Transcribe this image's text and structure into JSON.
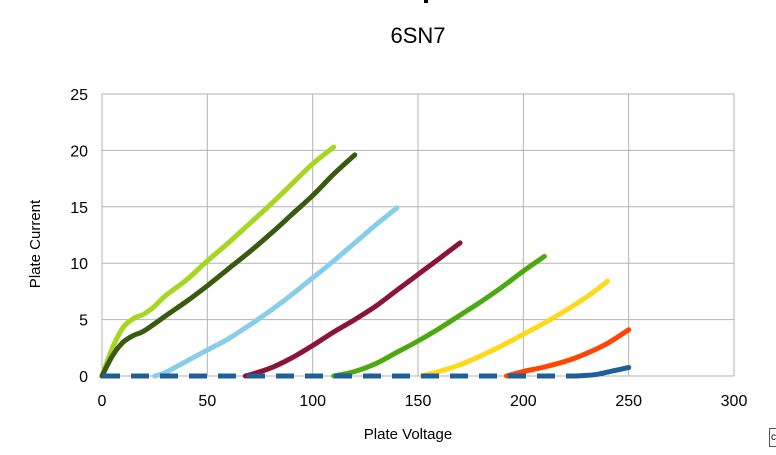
{
  "chart_data": {
    "type": "line",
    "title": "6SN7",
    "xlabel": "Plate Voltage",
    "ylabel": "Plate Current",
    "xlim": [
      0,
      300
    ],
    "ylim": [
      0,
      25
    ],
    "x_ticks": [
      0,
      50,
      100,
      150,
      200,
      250,
      300
    ],
    "y_ticks": [
      0,
      5,
      10,
      15,
      20,
      25
    ],
    "grid": true,
    "legend": "none",
    "series": [
      {
        "color": "#a6d620",
        "points": [
          [
            0,
            0
          ],
          [
            5,
            2.5
          ],
          [
            10,
            4.3
          ],
          [
            15,
            5.1
          ],
          [
            20,
            5.5
          ],
          [
            25,
            6.2
          ],
          [
            30,
            7.1
          ],
          [
            40,
            8.5
          ],
          [
            50,
            10.2
          ],
          [
            60,
            11.8
          ],
          [
            70,
            13.5
          ],
          [
            80,
            15.2
          ],
          [
            90,
            17.0
          ],
          [
            100,
            18.8
          ],
          [
            110,
            20.3
          ]
        ]
      },
      {
        "color": "#3a5a10",
        "points": [
          [
            0,
            0
          ],
          [
            5,
            1.8
          ],
          [
            10,
            3.0
          ],
          [
            15,
            3.6
          ],
          [
            20,
            4.0
          ],
          [
            30,
            5.3
          ],
          [
            40,
            6.6
          ],
          [
            50,
            8.0
          ],
          [
            60,
            9.5
          ],
          [
            70,
            11.0
          ],
          [
            80,
            12.6
          ],
          [
            90,
            14.3
          ],
          [
            100,
            16.0
          ],
          [
            110,
            17.9
          ],
          [
            120,
            19.6
          ]
        ]
      },
      {
        "color": "#87ceeb",
        "points": [
          [
            25,
            0
          ],
          [
            30,
            0.3
          ],
          [
            40,
            1.3
          ],
          [
            50,
            2.3
          ],
          [
            60,
            3.3
          ],
          [
            70,
            4.5
          ],
          [
            80,
            5.8
          ],
          [
            90,
            7.2
          ],
          [
            100,
            8.7
          ],
          [
            110,
            10.2
          ],
          [
            120,
            11.8
          ],
          [
            130,
            13.4
          ],
          [
            140,
            14.9
          ]
        ]
      },
      {
        "color": "#8b1538",
        "points": [
          [
            68,
            0
          ],
          [
            70,
            0.1
          ],
          [
            80,
            0.7
          ],
          [
            90,
            1.6
          ],
          [
            100,
            2.7
          ],
          [
            110,
            3.9
          ],
          [
            120,
            5.0
          ],
          [
            130,
            6.2
          ],
          [
            140,
            7.6
          ],
          [
            150,
            9.0
          ],
          [
            160,
            10.4
          ],
          [
            170,
            11.8
          ]
        ]
      },
      {
        "color": "#4caa10",
        "points": [
          [
            110,
            0
          ],
          [
            120,
            0.4
          ],
          [
            130,
            1.1
          ],
          [
            140,
            2.1
          ],
          [
            150,
            3.1
          ],
          [
            160,
            4.2
          ],
          [
            170,
            5.4
          ],
          [
            180,
            6.6
          ],
          [
            190,
            7.9
          ],
          [
            200,
            9.3
          ],
          [
            210,
            10.6
          ]
        ]
      },
      {
        "color": "#ffd81a",
        "points": [
          [
            152,
            0
          ],
          [
            160,
            0.4
          ],
          [
            170,
            1.0
          ],
          [
            180,
            1.8
          ],
          [
            190,
            2.7
          ],
          [
            200,
            3.7
          ],
          [
            210,
            4.7
          ],
          [
            220,
            5.8
          ],
          [
            230,
            7.0
          ],
          [
            240,
            8.4
          ]
        ]
      },
      {
        "color": "#ff4500",
        "points": [
          [
            192,
            0
          ],
          [
            200,
            0.4
          ],
          [
            210,
            0.8
          ],
          [
            220,
            1.3
          ],
          [
            230,
            2.0
          ],
          [
            240,
            2.9
          ],
          [
            250,
            4.1
          ]
        ]
      },
      {
        "color": "#1f5f99",
        "points": [
          [
            225,
            0
          ],
          [
            230,
            0.05
          ],
          [
            235,
            0.15
          ],
          [
            240,
            0.35
          ],
          [
            245,
            0.55
          ],
          [
            250,
            0.75
          ]
        ]
      }
    ],
    "zero_dash": {
      "color": "#1f5f99",
      "x": [
        0,
        225
      ]
    }
  },
  "corner_box_text": "c"
}
